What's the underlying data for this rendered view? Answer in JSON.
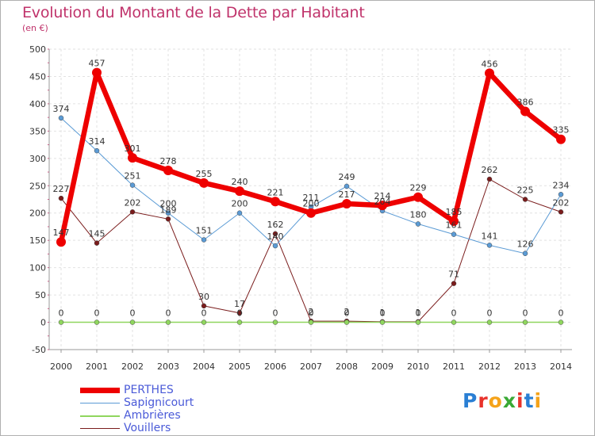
{
  "header": {
    "title": "Evolution du Montant de la Dette par Habitant",
    "subtitle": "(en €)"
  },
  "logo": {
    "text": "Proxiti",
    "colors": [
      "#2a7fd4",
      "#e8322b",
      "#f5a31a",
      "#3aa935",
      "#e8322b",
      "#2a7fd4",
      "#f5a31a"
    ]
  },
  "chart_data": {
    "type": "line",
    "title": "Evolution du Montant de la Dette par Habitant",
    "subtitle": "(en €)",
    "xlabel": "",
    "ylabel": "",
    "x": [
      "2000",
      "2001",
      "2002",
      "2003",
      "2004",
      "2005",
      "2006",
      "2007",
      "2008",
      "2009",
      "2010",
      "2011",
      "2012",
      "2013",
      "2014"
    ],
    "ylim": [
      -50,
      500
    ],
    "yticks": [
      "-50",
      "0",
      "50",
      "100",
      "150",
      "200",
      "250",
      "300",
      "350",
      "400",
      "450",
      "500"
    ],
    "grid": true,
    "legend_position": "bottom-left",
    "series": [
      {
        "name": "Vouillers",
        "color": "#7a1c1c",
        "width": 1,
        "marker": 3,
        "values": [
          227,
          145,
          202,
          189,
          30,
          17,
          162,
          2,
          2,
          1,
          1,
          71,
          262,
          225,
          202
        ],
        "labels": [
          "227",
          "145",
          "202",
          "189",
          "30",
          "17",
          "162",
          "2",
          "2",
          "1",
          "1",
          "71",
          "262",
          "225",
          "202"
        ]
      },
      {
        "name": "Sapignicourt",
        "color": "#5b9bd5",
        "width": 1,
        "marker": 3,
        "values": [
          374,
          314,
          251,
          200,
          151,
          200,
          140,
          211,
          249,
          204,
          180,
          161,
          141,
          126,
          234
        ],
        "labels": [
          "374",
          "314",
          "251",
          "200",
          "151",
          "200",
          "140",
          "211",
          "249",
          "204",
          "180",
          "161",
          "141",
          "126",
          "234"
        ]
      },
      {
        "name": "Ambrières",
        "color": "#8fd65e",
        "width": 1.5,
        "marker": 3,
        "values": [
          0,
          0,
          0,
          0,
          0,
          0,
          0,
          0,
          0,
          0,
          0,
          0,
          0,
          0,
          0
        ],
        "labels": [
          "0",
          "0",
          "0",
          "0",
          "0",
          "0",
          "0",
          "0",
          "0",
          "0",
          "0",
          "0",
          "0",
          "0",
          "0"
        ]
      },
      {
        "name": "PERTHES",
        "color": "#ee0000",
        "width": 6.5,
        "marker": 6,
        "values": [
          147,
          457,
          301,
          278,
          255,
          240,
          221,
          200,
          217,
          214,
          229,
          185,
          456,
          386,
          335
        ],
        "labels": [
          "147",
          "457",
          "301",
          "278",
          "255",
          "240",
          "221",
          "200",
          "217",
          "214",
          "229",
          "185",
          "456",
          "386",
          "335"
        ]
      }
    ],
    "legend": [
      "PERTHES",
      "Sapignicourt",
      "Ambrières",
      "Vouillers"
    ]
  }
}
